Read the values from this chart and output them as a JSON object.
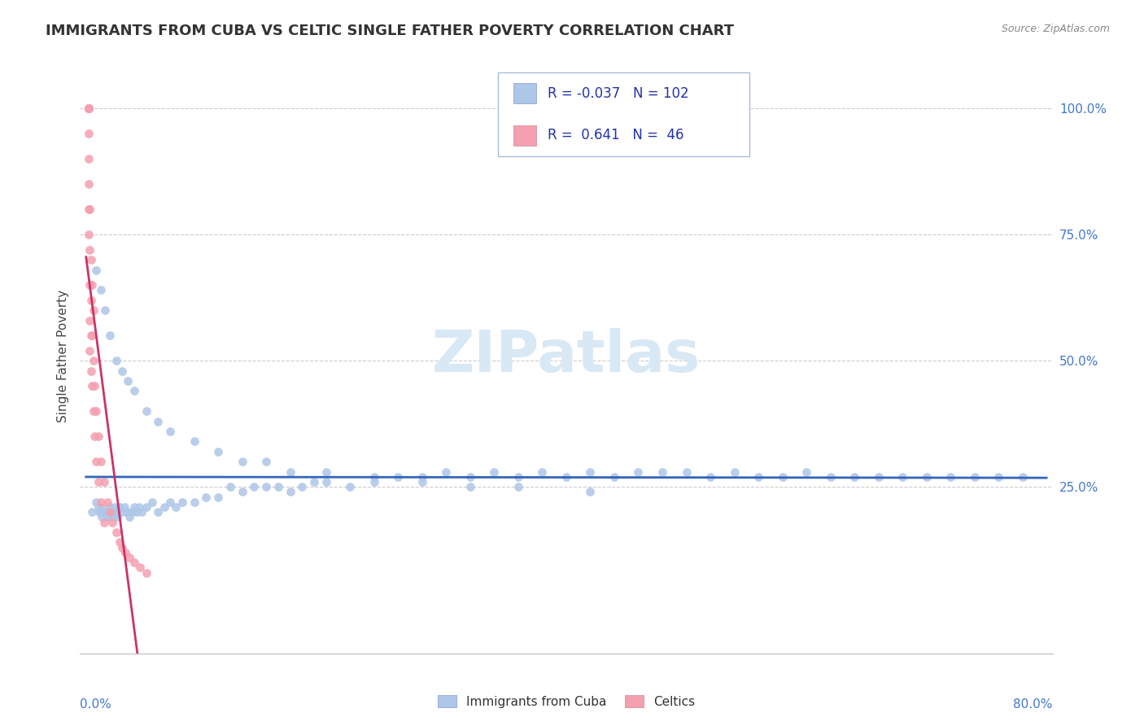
{
  "title": "IMMIGRANTS FROM CUBA VS CELTIC SINGLE FATHER POVERTY CORRELATION CHART",
  "source": "Source: ZipAtlas.com",
  "ylabel": "Single Father Poverty",
  "legend_r_blue": "-0.037",
  "legend_n_blue": "102",
  "legend_r_pink": "0.641",
  "legend_n_pink": "46",
  "blue_color": "#aec6e8",
  "pink_color": "#f4a0b0",
  "trendline_blue": "#3366bb",
  "trendline_pink": "#cc3366",
  "background": "#ffffff",
  "grid_color": "#cccccc",
  "ytick_color": "#4477cc",
  "title_color": "#333333",
  "source_color": "#888888",
  "watermark_color": "#d8e8f5",
  "legend_text_color": "#2233aa",
  "blue_x": [
    0.005,
    0.008,
    0.01,
    0.011,
    0.012,
    0.013,
    0.014,
    0.015,
    0.016,
    0.017,
    0.018,
    0.019,
    0.02,
    0.021,
    0.022,
    0.023,
    0.024,
    0.025,
    0.026,
    0.027,
    0.028,
    0.03,
    0.032,
    0.034,
    0.036,
    0.038,
    0.04,
    0.042,
    0.044,
    0.046,
    0.05,
    0.055,
    0.06,
    0.065,
    0.07,
    0.075,
    0.08,
    0.09,
    0.1,
    0.11,
    0.12,
    0.13,
    0.14,
    0.15,
    0.16,
    0.17,
    0.18,
    0.19,
    0.2,
    0.22,
    0.24,
    0.26,
    0.28,
    0.3,
    0.32,
    0.34,
    0.36,
    0.38,
    0.4,
    0.42,
    0.44,
    0.46,
    0.48,
    0.5,
    0.52,
    0.54,
    0.56,
    0.58,
    0.6,
    0.62,
    0.64,
    0.66,
    0.68,
    0.7,
    0.72,
    0.74,
    0.76,
    0.78,
    0.008,
    0.012,
    0.016,
    0.02,
    0.025,
    0.03,
    0.035,
    0.04,
    0.05,
    0.06,
    0.07,
    0.09,
    0.11,
    0.13,
    0.15,
    0.17,
    0.2,
    0.24,
    0.28,
    0.32,
    0.36,
    0.42
  ],
  "blue_y": [
    0.2,
    0.22,
    0.21,
    0.2,
    0.2,
    0.19,
    0.21,
    0.2,
    0.2,
    0.19,
    0.2,
    0.19,
    0.21,
    0.2,
    0.19,
    0.2,
    0.21,
    0.2,
    0.19,
    0.21,
    0.21,
    0.2,
    0.21,
    0.2,
    0.19,
    0.2,
    0.21,
    0.2,
    0.21,
    0.2,
    0.21,
    0.22,
    0.2,
    0.21,
    0.22,
    0.21,
    0.22,
    0.22,
    0.23,
    0.23,
    0.25,
    0.24,
    0.25,
    0.25,
    0.25,
    0.24,
    0.25,
    0.26,
    0.26,
    0.25,
    0.27,
    0.27,
    0.27,
    0.28,
    0.27,
    0.28,
    0.27,
    0.28,
    0.27,
    0.28,
    0.27,
    0.28,
    0.28,
    0.28,
    0.27,
    0.28,
    0.27,
    0.27,
    0.28,
    0.27,
    0.27,
    0.27,
    0.27,
    0.27,
    0.27,
    0.27,
    0.27,
    0.27,
    0.68,
    0.64,
    0.6,
    0.55,
    0.5,
    0.48,
    0.46,
    0.44,
    0.4,
    0.38,
    0.36,
    0.34,
    0.32,
    0.3,
    0.3,
    0.28,
    0.28,
    0.26,
    0.26,
    0.25,
    0.25,
    0.24
  ],
  "pink_x": [
    0.002,
    0.002,
    0.002,
    0.002,
    0.002,
    0.002,
    0.002,
    0.002,
    0.002,
    0.002,
    0.003,
    0.003,
    0.003,
    0.003,
    0.003,
    0.004,
    0.004,
    0.004,
    0.004,
    0.005,
    0.005,
    0.005,
    0.006,
    0.006,
    0.006,
    0.007,
    0.007,
    0.008,
    0.008,
    0.01,
    0.01,
    0.012,
    0.012,
    0.015,
    0.015,
    0.018,
    0.02,
    0.022,
    0.025,
    0.028,
    0.03,
    0.033,
    0.036,
    0.04,
    0.045,
    0.05
  ],
  "pink_y": [
    1.0,
    1.0,
    1.0,
    1.0,
    1.0,
    0.95,
    0.9,
    0.85,
    0.8,
    0.75,
    0.8,
    0.72,
    0.65,
    0.58,
    0.52,
    0.7,
    0.62,
    0.55,
    0.48,
    0.65,
    0.55,
    0.45,
    0.6,
    0.5,
    0.4,
    0.45,
    0.35,
    0.4,
    0.3,
    0.35,
    0.26,
    0.3,
    0.22,
    0.26,
    0.18,
    0.22,
    0.2,
    0.18,
    0.16,
    0.14,
    0.13,
    0.12,
    0.11,
    0.1,
    0.09,
    0.08
  ]
}
